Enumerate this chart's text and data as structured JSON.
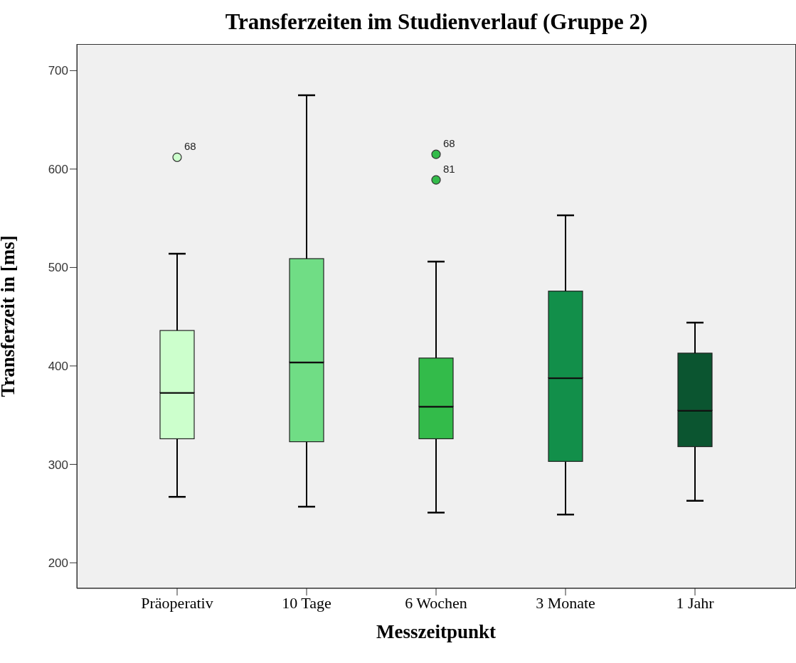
{
  "chart_data": {
    "type": "box",
    "title": "Transferzeiten im Studienverlauf (Gruppe 2)",
    "xlabel": "Messzeitpunkt",
    "ylabel": "Transferzeit in [ms]",
    "categories": [
      "Präoperativ",
      "10 Tage",
      "6 Wochen",
      "3 Monate",
      "1 Jahr"
    ],
    "colors": [
      "#ccffcc",
      "#70dd85",
      "#33bb4a",
      "#128f4a",
      "#0b5530"
    ],
    "boxes": [
      {
        "low": 267,
        "q1": 326,
        "median": 373,
        "q3": 436,
        "high": 514,
        "outliers": [
          612
        ]
      },
      {
        "low": 257,
        "q1": 323,
        "median": 404,
        "q3": 509,
        "high": 675
      },
      {
        "low": 251,
        "q1": 326,
        "median": 359,
        "q3": 408,
        "high": 506,
        "outliers": [
          615,
          589
        ]
      },
      {
        "low": 249,
        "q1": 303,
        "median": 388,
        "q3": 476,
        "high": 553
      },
      {
        "low": 263,
        "q1": 318,
        "median": 355,
        "q3": 413,
        "high": 444
      }
    ],
    "ylim": [
      174,
      727
    ],
    "yticks": [
      200,
      300,
      400,
      500,
      600,
      700
    ],
    "annotations": [
      "68",
      "68",
      "81"
    ]
  }
}
